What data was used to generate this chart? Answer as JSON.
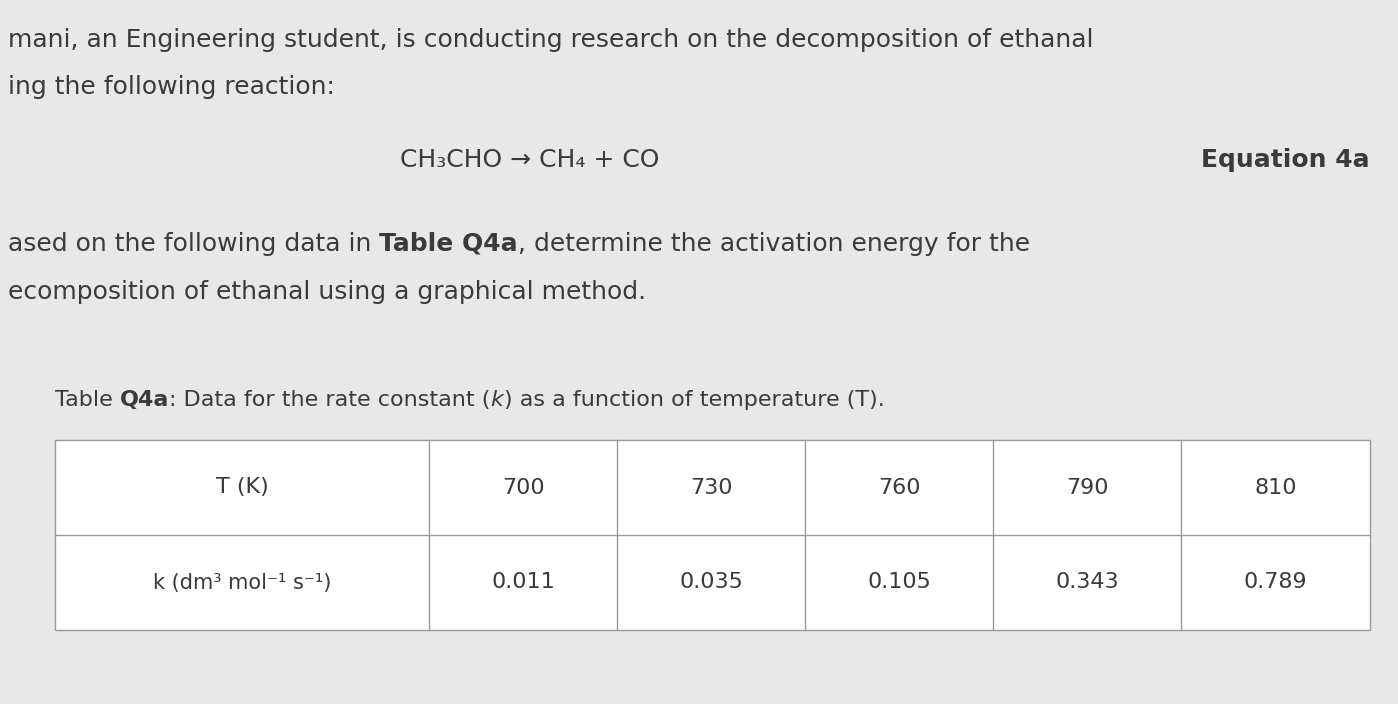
{
  "page_background": "#e8e8e8",
  "table_background": "#ffffff",
  "text_color": "#3a3a3a",
  "intro_line1": "mani, an Engineering student, is conducting research on the decomposition of ethanal",
  "intro_line2": "ing the following reaction:",
  "reaction_text": "CH₃CHO → CH₄ + CO",
  "equation_label": "Equation 4a",
  "body_pre": "ased on the following data in ",
  "body_bold": "Table Q4a",
  "body_post": ", determine the activation energy for the",
  "body_line2": "ecomposition of ethanal using a graphical method.",
  "cap_pre": "Table ",
  "cap_bold": "Q4a",
  "cap_mid": ": Data for the rate constant (",
  "cap_italic": "k",
  "cap_end": ") as a function of temperature (T).",
  "col_header1": "T (K)",
  "col_header2": "k (dm³ mol⁻¹ s⁻¹)",
  "temperatures": [
    "700",
    "730",
    "760",
    "790",
    "810"
  ],
  "k_values": [
    "0.011",
    "0.035",
    "0.105",
    "0.343",
    "0.789"
  ],
  "table_border_color": "#999999",
  "font_size_body": 18,
  "font_size_reaction": 18,
  "font_size_table_header": 16,
  "font_size_table_data": 16,
  "font_size_caption": 16
}
